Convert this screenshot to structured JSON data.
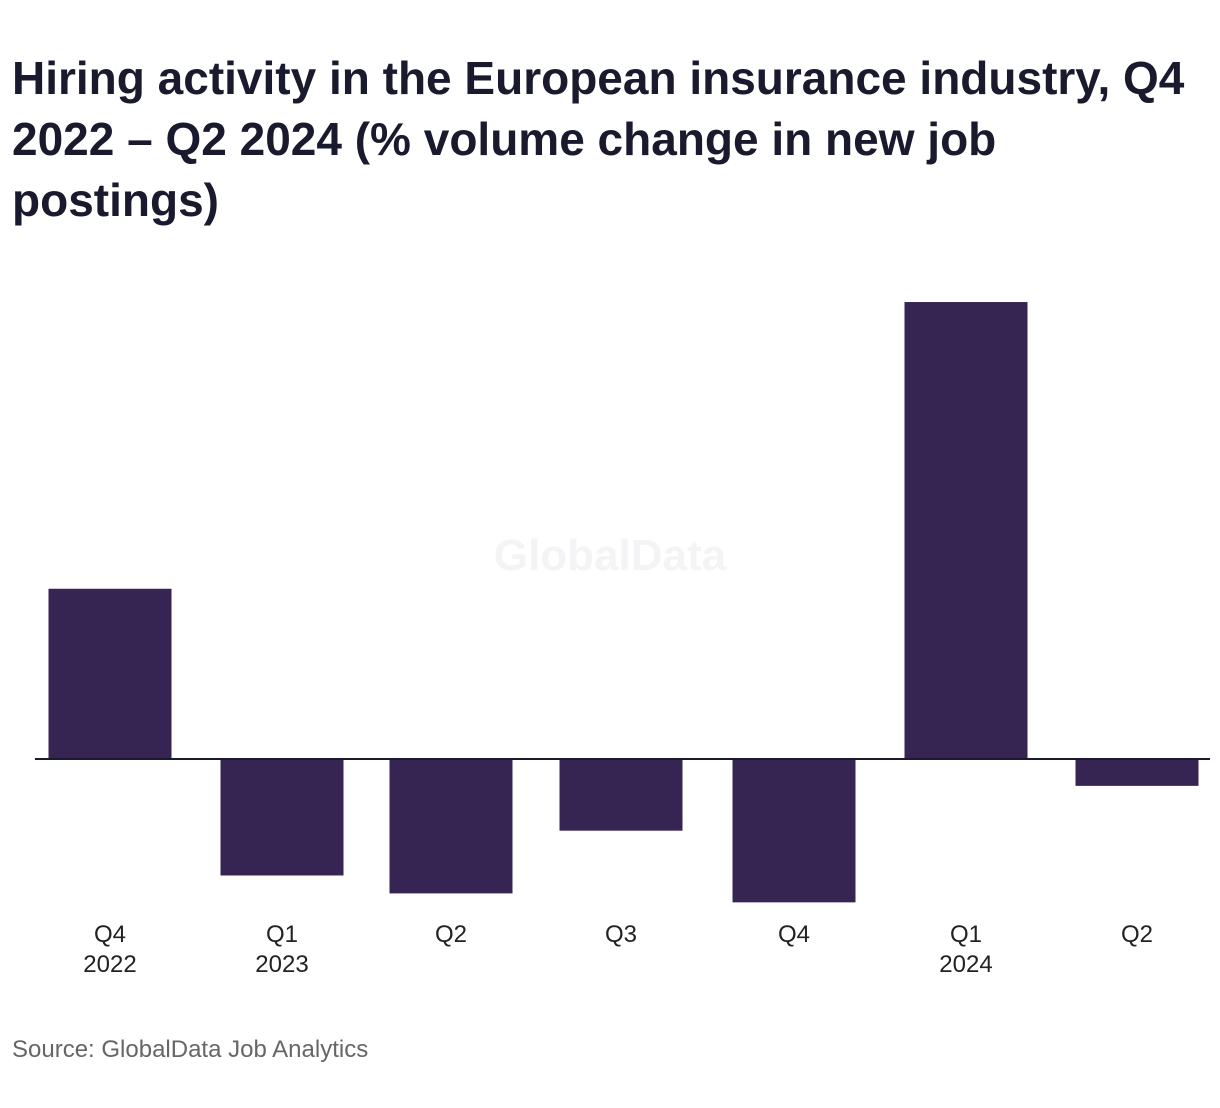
{
  "chart_data": {
    "type": "bar",
    "title": "Hiring activity in the European insurance industry, Q4 2022 – Q2 2024 (% volume change in new job postings)",
    "categories": [
      {
        "quarter": "Q4",
        "year": "2022"
      },
      {
        "quarter": "Q1",
        "year": "2023"
      },
      {
        "quarter": "Q2",
        "year": ""
      },
      {
        "quarter": "Q3",
        "year": ""
      },
      {
        "quarter": "Q4",
        "year": ""
      },
      {
        "quarter": "Q1",
        "year": "2024"
      },
      {
        "quarter": "Q2",
        "year": ""
      }
    ],
    "values": [
      19,
      -13,
      -15,
      -8,
      -16,
      51,
      -3
    ],
    "ylim": [
      -17,
      52
    ],
    "grid": false,
    "bar_color": "#362452",
    "xlabel": "",
    "ylabel": ""
  },
  "watermark": "GlobalData",
  "source": "Source: GlobalData Job Analytics"
}
